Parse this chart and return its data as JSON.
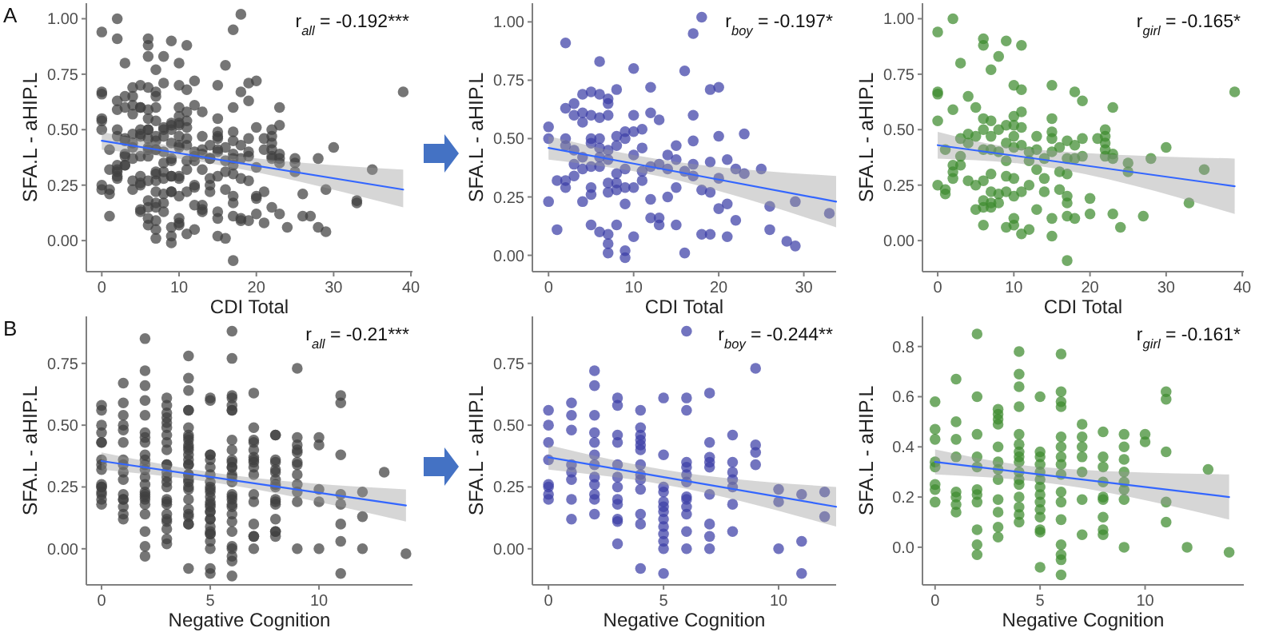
{
  "chart_data": [
    {
      "type": "scatter",
      "xlabel": "CDI Total",
      "ylabel": "SFA.L - aHIP.L",
      "marker": "circle",
      "annotations": [
        "r$_{all}$ = -0.192***",
        "A"
      ],
      "xlim": [
        -2,
        40.2
      ],
      "ylim": [
        -0.14,
        1.07
      ],
      "xticks": [
        0,
        10,
        20,
        30,
        40
      ],
      "yticks": [
        {
          "value": 0,
          "label": "0.00"
        },
        {
          "value": 0.25,
          "label": "0.25"
        },
        {
          "value": 0.5,
          "label": "0.50"
        },
        {
          "value": 0.75,
          "label": "0.75"
        },
        {
          "value": 1,
          "label": "1.00"
        }
      ],
      "series": [
        {
          "color": "#404040",
          "x": [
            0,
            0,
            0,
            1,
            1,
            2,
            2,
            2,
            2,
            2,
            2,
            3,
            3,
            3,
            3,
            3,
            4,
            4,
            4,
            4,
            4,
            4,
            5,
            5,
            5,
            5,
            5,
            5,
            5,
            5,
            6,
            6,
            6,
            6,
            6,
            6,
            6,
            6,
            7,
            7,
            7,
            7,
            7,
            7,
            7,
            7,
            7,
            7,
            8,
            8,
            8,
            8,
            8,
            8,
            8,
            9,
            9,
            9,
            9,
            9,
            9,
            9,
            10,
            10,
            10,
            10,
            10,
            10,
            11,
            11,
            11,
            11,
            12,
            12,
            12,
            12,
            12,
            13,
            13,
            13,
            13,
            14,
            14,
            14,
            15,
            15,
            15,
            15,
            16,
            16,
            16,
            17,
            17,
            17,
            17,
            17,
            18,
            18,
            18,
            19,
            19,
            19,
            19,
            20,
            20,
            20,
            20,
            21,
            21,
            21,
            22,
            22,
            23,
            23,
            25,
            26,
            26,
            28,
            29,
            29,
            33,
            0,
            0,
            0,
            0,
            0,
            1,
            1,
            1,
            2,
            2,
            2,
            2,
            2,
            3,
            3,
            3,
            3,
            4,
            4,
            4,
            4,
            5,
            5,
            5,
            5,
            6,
            6,
            6,
            6,
            6,
            6,
            6,
            6,
            6,
            7,
            7,
            7,
            7,
            7,
            7,
            7,
            7,
            8,
            8,
            8,
            8,
            8,
            9,
            9,
            9,
            9,
            9,
            9,
            9,
            10,
            10,
            10,
            10,
            10,
            10,
            10,
            10,
            10,
            11,
            11,
            11,
            11,
            11,
            11,
            11,
            12,
            12,
            12,
            12,
            13,
            13,
            13,
            13,
            14,
            14,
            14,
            15,
            15,
            15,
            15,
            15,
            15,
            15,
            16,
            16,
            16,
            17,
            17,
            17,
            17,
            17,
            17,
            17,
            18,
            18,
            18,
            18,
            19,
            19,
            19,
            20,
            20,
            21,
            22,
            22,
            22,
            22,
            22,
            23,
            23,
            23,
            23,
            24,
            25,
            25,
            27,
            28,
            30,
            33,
            35,
            39
          ],
          "values": [
            0.55,
            0.5,
            0.23,
            0.11,
            0.32,
            0.91,
            0.63,
            0.5,
            0.47,
            0.32,
            0.29,
            0.65,
            0.6,
            0.45,
            0.39,
            0.34,
            0.69,
            0.61,
            0.57,
            0.42,
            0.37,
            0.23,
            0.7,
            0.6,
            0.5,
            0.48,
            0.38,
            0.29,
            0.26,
            0.13,
            0.83,
            0.69,
            0.59,
            0.5,
            0.46,
            0.42,
            0.38,
            0.1,
            0.67,
            0.65,
            0.6,
            0.45,
            0.41,
            0.31,
            0.27,
            0.09,
            0.05,
            0.01,
            0.71,
            0.51,
            0.47,
            0.35,
            0.31,
            0.28,
            0.13,
            0.53,
            0.5,
            0.37,
            0.29,
            0.22,
            0.02,
            -0.01,
            0.8,
            0.6,
            0.53,
            0.43,
            0.29,
            0.08,
            0.54,
            0.46,
            0.36,
            0.32,
            0.72,
            0.61,
            0.38,
            0.24,
            0.16,
            0.58,
            0.39,
            0.16,
            0.13,
            0.43,
            0.37,
            0.25,
            0.47,
            0.41,
            0.29,
            0.13,
            0.79,
            0.36,
            0.01,
            0.95,
            0.6,
            0.49,
            0.39,
            0.34,
            1.02,
            0.28,
            0.09,
            0.71,
            0.4,
            0.27,
            0.09,
            0.72,
            0.51,
            0.33,
            0.2,
            0.41,
            0.22,
            0.08,
            0.37,
            0.15,
            0.52,
            0.35,
            0.37,
            0.21,
            0.11,
            0.06,
            0.23,
            0.04,
            0.18,
            0.94,
            0.67,
            0.66,
            0.54,
            0.25,
            0.41,
            0.23,
            0.21,
            1.0,
            0.59,
            0.34,
            0.31,
            0.28,
            0.8,
            0.46,
            0.38,
            0.34,
            0.65,
            0.48,
            0.44,
            0.27,
            0.6,
            0.47,
            0.25,
            0.14,
            0.91,
            0.88,
            0.55,
            0.5,
            0.41,
            0.27,
            0.18,
            0.15,
            0.07,
            0.77,
            0.54,
            0.47,
            0.41,
            0.3,
            0.22,
            0.17,
            0.15,
            0.83,
            0.5,
            0.4,
            0.21,
            0.17,
            0.9,
            0.52,
            0.44,
            0.36,
            0.29,
            0.22,
            0.06,
            0.7,
            0.56,
            0.52,
            0.47,
            0.42,
            0.28,
            0.2,
            0.1,
            0.07,
            0.88,
            0.68,
            0.58,
            0.51,
            0.43,
            0.22,
            0.03,
            0.4,
            0.36,
            0.25,
            0.05,
            0.47,
            0.41,
            0.32,
            0.14,
            0.37,
            0.28,
            0.22,
            0.7,
            0.55,
            0.49,
            0.46,
            0.4,
            0.1,
            0.02,
            0.42,
            0.31,
            0.23,
            0.45,
            0.37,
            0.3,
            0.2,
            0.17,
            0.11,
            -0.09,
            0.67,
            0.43,
            0.37,
            0.1,
            0.63,
            0.46,
            0.38,
            0.19,
            0.12,
            0.46,
            0.5,
            0.47,
            0.44,
            0.41,
            0.38,
            0.6,
            0.39,
            0.37,
            0.12,
            0.06,
            0.35,
            0.31,
            0.11,
            0.37,
            0.42,
            0.17,
            0.32,
            0.67
          ]
        },
        {
          "type": "line",
          "marker": "none",
          "color": "#3366ff",
          "x": [
            0,
            10,
            39
          ],
          "values": [
            0.45,
            0.394,
            0.23
          ],
          "lower": [
            0.41,
            0.37,
            0.15
          ],
          "upper": [
            0.49,
            0.42,
            0.32
          ]
        }
      ]
    },
    {
      "type": "scatter",
      "xlabel": "CDI Total",
      "ylabel": "SFA.L - aHIP.L",
      "marker": "circle",
      "annotations": [
        "r$_{boy}$ = -0.197*"
      ],
      "xlim": [
        -1.9,
        33.8
      ],
      "ylim": [
        -0.07,
        1.08
      ],
      "xticks": [
        0,
        10,
        20,
        30
      ],
      "yticks": [
        {
          "value": 0,
          "label": "0.00"
        },
        {
          "value": 0.25,
          "label": "0.25"
        },
        {
          "value": 0.5,
          "label": "0.50"
        },
        {
          "value": 0.75,
          "label": "0.75"
        },
        {
          "value": 1,
          "label": "1.00"
        }
      ],
      "series": [
        {
          "color": "#3b3fa6",
          "x": [
            0,
            0,
            0,
            1,
            1,
            2,
            2,
            2,
            2,
            2,
            2,
            3,
            3,
            3,
            3,
            3,
            4,
            4,
            4,
            4,
            4,
            4,
            5,
            5,
            5,
            5,
            5,
            5,
            5,
            5,
            6,
            6,
            6,
            6,
            6,
            6,
            6,
            6,
            7,
            7,
            7,
            7,
            7,
            7,
            7,
            7,
            7,
            7,
            8,
            8,
            8,
            8,
            8,
            8,
            8,
            9,
            9,
            9,
            9,
            9,
            9,
            9,
            10,
            10,
            10,
            10,
            10,
            10,
            11,
            11,
            11,
            11,
            12,
            12,
            12,
            12,
            12,
            13,
            13,
            13,
            13,
            14,
            14,
            14,
            15,
            15,
            15,
            15,
            16,
            16,
            16,
            17,
            17,
            17,
            17,
            17,
            18,
            18,
            18,
            19,
            19,
            19,
            19,
            20,
            20,
            20,
            20,
            21,
            21,
            21,
            22,
            22,
            23,
            23,
            25,
            26,
            26,
            28,
            29,
            29,
            33
          ],
          "values": [
            0.55,
            0.5,
            0.23,
            0.11,
            0.32,
            0.91,
            0.63,
            0.5,
            0.47,
            0.32,
            0.29,
            0.65,
            0.6,
            0.45,
            0.39,
            0.34,
            0.69,
            0.61,
            0.57,
            0.42,
            0.37,
            0.23,
            0.7,
            0.6,
            0.5,
            0.48,
            0.38,
            0.29,
            0.26,
            0.13,
            0.83,
            0.69,
            0.59,
            0.5,
            0.46,
            0.42,
            0.38,
            0.1,
            0.67,
            0.65,
            0.6,
            0.45,
            0.41,
            0.31,
            0.27,
            0.09,
            0.05,
            0.01,
            0.71,
            0.51,
            0.47,
            0.35,
            0.31,
            0.28,
            0.13,
            0.53,
            0.5,
            0.37,
            0.29,
            0.22,
            0.02,
            -0.01,
            0.8,
            0.6,
            0.53,
            0.43,
            0.29,
            0.08,
            0.54,
            0.46,
            0.36,
            0.32,
            0.72,
            0.61,
            0.38,
            0.24,
            0.16,
            0.58,
            0.39,
            0.16,
            0.13,
            0.43,
            0.37,
            0.25,
            0.47,
            0.41,
            0.29,
            0.13,
            0.79,
            0.36,
            0.01,
            0.95,
            0.6,
            0.49,
            0.39,
            0.34,
            1.02,
            0.28,
            0.09,
            0.71,
            0.4,
            0.27,
            0.09,
            0.72,
            0.51,
            0.33,
            0.2,
            0.41,
            0.22,
            0.08,
            0.37,
            0.15,
            0.52,
            0.35,
            0.37,
            0.21,
            0.11,
            0.06,
            0.23,
            0.04,
            0.18
          ]
        },
        {
          "type": "line",
          "marker": "none",
          "color": "#3366ff",
          "x": [
            0,
            10,
            33.8
          ],
          "values": [
            0.46,
            0.393,
            0.23
          ],
          "lower": [
            0.41,
            0.36,
            0.12
          ],
          "upper": [
            0.51,
            0.43,
            0.34
          ]
        }
      ]
    },
    {
      "type": "scatter",
      "xlabel": "CDI Total",
      "ylabel": "SFA.L - aHIP.L",
      "marker": "circle",
      "annotations": [
        "r$_{girl}$ = -0.165*"
      ],
      "xlim": [
        -2,
        40.2
      ],
      "ylim": [
        -0.14,
        1.07
      ],
      "xticks": [
        0,
        10,
        20,
        30,
        40
      ],
      "yticks": [
        {
          "value": 0,
          "label": "0.00"
        },
        {
          "value": 0.25,
          "label": "0.25"
        },
        {
          "value": 0.5,
          "label": "0.50"
        },
        {
          "value": 0.75,
          "label": "0.75"
        },
        {
          "value": 1,
          "label": "1.00"
        }
      ],
      "series": [
        {
          "color": "#3d8a2e",
          "x": [
            0,
            0,
            0,
            0,
            0,
            1,
            1,
            1,
            2,
            2,
            2,
            2,
            2,
            3,
            3,
            3,
            3,
            4,
            4,
            4,
            4,
            5,
            5,
            5,
            5,
            6,
            6,
            6,
            6,
            6,
            6,
            6,
            6,
            6,
            7,
            7,
            7,
            7,
            7,
            7,
            7,
            7,
            8,
            8,
            8,
            8,
            8,
            9,
            9,
            9,
            9,
            9,
            9,
            9,
            10,
            10,
            10,
            10,
            10,
            10,
            10,
            10,
            10,
            11,
            11,
            11,
            11,
            11,
            11,
            11,
            12,
            12,
            12,
            12,
            13,
            13,
            13,
            13,
            14,
            14,
            14,
            15,
            15,
            15,
            15,
            15,
            15,
            15,
            16,
            16,
            16,
            17,
            17,
            17,
            17,
            17,
            17,
            17,
            18,
            18,
            18,
            18,
            19,
            19,
            19,
            20,
            20,
            21,
            22,
            22,
            22,
            22,
            22,
            23,
            23,
            23,
            23,
            24,
            25,
            25,
            27,
            28,
            30,
            33,
            35,
            39
          ],
          "values": [
            0.94,
            0.67,
            0.66,
            0.54,
            0.25,
            0.41,
            0.23,
            0.21,
            1.0,
            0.59,
            0.34,
            0.31,
            0.28,
            0.8,
            0.46,
            0.38,
            0.34,
            0.65,
            0.48,
            0.44,
            0.27,
            0.6,
            0.47,
            0.25,
            0.14,
            0.91,
            0.88,
            0.55,
            0.5,
            0.41,
            0.27,
            0.18,
            0.15,
            0.07,
            0.77,
            0.54,
            0.47,
            0.41,
            0.3,
            0.22,
            0.17,
            0.15,
            0.83,
            0.5,
            0.4,
            0.21,
            0.17,
            0.9,
            0.52,
            0.44,
            0.36,
            0.29,
            0.22,
            0.06,
            0.7,
            0.56,
            0.52,
            0.47,
            0.42,
            0.28,
            0.2,
            0.1,
            0.07,
            0.88,
            0.68,
            0.58,
            0.51,
            0.43,
            0.22,
            0.03,
            0.4,
            0.36,
            0.25,
            0.05,
            0.47,
            0.41,
            0.32,
            0.14,
            0.37,
            0.28,
            0.22,
            0.7,
            0.55,
            0.49,
            0.46,
            0.4,
            0.1,
            0.02,
            0.42,
            0.31,
            0.23,
            0.45,
            0.37,
            0.3,
            0.2,
            0.17,
            0.11,
            -0.09,
            0.67,
            0.43,
            0.37,
            0.1,
            0.63,
            0.46,
            0.38,
            0.19,
            0.12,
            0.46,
            0.5,
            0.47,
            0.44,
            0.41,
            0.38,
            0.6,
            0.39,
            0.37,
            0.12,
            0.06,
            0.35,
            0.31,
            0.11,
            0.37,
            0.42,
            0.17,
            0.32,
            0.67
          ]
        },
        {
          "type": "line",
          "marker": "none",
          "color": "#3366ff",
          "x": [
            0,
            10,
            39
          ],
          "values": [
            0.43,
            0.383,
            0.245
          ],
          "lower": [
            0.37,
            0.35,
            0.12
          ],
          "upper": [
            0.49,
            0.42,
            0.37
          ]
        }
      ]
    },
    {
      "type": "scatter",
      "xlabel": "Negative Cognition",
      "ylabel": "SFA.L - aHIP.L",
      "marker": "circle",
      "annotations": [
        "r$_{all}$ = -0.21***",
        "B"
      ],
      "xlim": [
        -0.7,
        14.3
      ],
      "ylim": [
        -0.146,
        0.94
      ],
      "xticks": [
        0,
        5,
        10
      ],
      "yticks": [
        {
          "value": 0,
          "label": "0.00"
        },
        {
          "value": 0.25,
          "label": "0.25"
        },
        {
          "value": 0.5,
          "label": "0.50"
        },
        {
          "value": 0.75,
          "label": "0.75"
        }
      ],
      "series": [
        {
          "color": "#404040",
          "x": [
            0,
            0,
            0,
            0,
            0,
            0,
            0,
            0,
            1,
            1,
            1,
            1,
            1,
            1,
            1,
            1,
            2,
            2,
            2,
            2,
            2,
            2,
            2,
            2,
            2,
            2,
            2,
            2,
            3,
            3,
            3,
            3,
            3,
            3,
            3,
            3,
            3,
            3,
            3,
            3,
            4,
            4,
            4,
            4,
            4,
            4,
            4,
            4,
            4,
            4,
            4,
            4,
            4,
            5,
            5,
            5,
            5,
            5,
            5,
            5,
            5,
            5,
            5,
            5,
            5,
            5,
            6,
            6,
            6,
            6,
            6,
            6,
            6,
            6,
            6,
            6,
            6,
            6,
            6,
            7,
            7,
            7,
            7,
            7,
            7,
            7,
            7,
            7,
            8,
            8,
            8,
            8,
            8,
            8,
            8,
            9,
            9,
            9,
            9,
            10,
            10,
            10,
            11,
            11,
            11,
            12,
            12,
            0,
            0,
            0,
            0,
            0,
            0,
            0,
            0,
            1,
            1,
            1,
            1,
            1,
            1,
            1,
            1,
            2,
            2,
            2,
            2,
            2,
            2,
            2,
            2,
            2,
            2,
            2,
            3,
            3,
            3,
            3,
            3,
            3,
            3,
            3,
            3,
            3,
            3,
            3,
            4,
            4,
            4,
            4,
            4,
            4,
            4,
            4,
            4,
            4,
            4,
            4,
            4,
            4,
            4,
            4,
            5,
            5,
            5,
            5,
            5,
            5,
            5,
            5,
            5,
            5,
            5,
            5,
            5,
            5,
            6,
            6,
            6,
            6,
            6,
            6,
            6,
            6,
            6,
            6,
            6,
            6,
            6,
            6,
            6,
            6,
            7,
            7,
            7,
            7,
            7,
            7,
            7,
            8,
            8,
            8,
            8,
            8,
            8,
            8,
            8,
            8,
            9,
            9,
            9,
            9,
            9,
            9,
            9,
            9,
            10,
            10,
            11,
            11,
            11,
            11,
            11,
            12,
            13,
            14
          ],
          "values": [
            0.56,
            0.5,
            0.43,
            0.36,
            0.26,
            0.25,
            0.22,
            0.2,
            0.59,
            0.54,
            0.48,
            0.34,
            0.31,
            0.28,
            0.2,
            0.12,
            0.72,
            0.66,
            0.54,
            0.47,
            0.43,
            0.38,
            0.34,
            0.29,
            0.26,
            0.22,
            0.2,
            0.14,
            0.61,
            0.58,
            0.46,
            0.43,
            0.34,
            0.29,
            0.25,
            0.2,
            0.18,
            0.12,
            0.11,
            0.02,
            0.56,
            0.49,
            0.46,
            0.44,
            0.42,
            0.4,
            0.34,
            0.3,
            0.28,
            0.24,
            0.14,
            0.1,
            -0.08,
            0.61,
            0.38,
            0.25,
            0.23,
            0.19,
            0.17,
            0.15,
            0.12,
            0.09,
            0.06,
            0.03,
            0.0,
            -0.1,
            0.88,
            0.61,
            0.56,
            0.35,
            0.33,
            0.3,
            0.27,
            0.21,
            0.2,
            0.17,
            0.14,
            0.07,
            0.0,
            0.63,
            0.43,
            0.37,
            0.35,
            0.33,
            0.22,
            0.1,
            0.05,
            0.0,
            0.46,
            0.35,
            0.31,
            0.28,
            0.25,
            0.18,
            0.07,
            0.73,
            0.42,
            0.39,
            0.34,
            0.24,
            0.19,
            0.0,
            0.22,
            0.03,
            -0.1,
            0.23,
            0.13,
            0.58,
            0.47,
            0.43,
            0.34,
            0.32,
            0.25,
            0.23,
            0.18,
            0.67,
            0.5,
            0.43,
            0.36,
            0.22,
            0.2,
            0.17,
            0.14,
            0.85,
            0.6,
            0.45,
            0.36,
            0.32,
            0.23,
            0.21,
            0.18,
            0.07,
            0.01,
            -0.03,
            0.55,
            0.53,
            0.51,
            0.49,
            0.4,
            0.34,
            0.31,
            0.27,
            0.19,
            0.14,
            0.08,
            0.04,
            0.78,
            0.69,
            0.64,
            0.56,
            0.45,
            0.41,
            0.38,
            0.36,
            0.34,
            0.3,
            0.27,
            0.25,
            0.2,
            0.16,
            0.13,
            0.1,
            0.6,
            0.38,
            0.36,
            0.33,
            0.3,
            0.27,
            0.24,
            0.21,
            0.18,
            0.15,
            0.12,
            0.07,
            0.06,
            -0.08,
            0.77,
            0.62,
            0.58,
            0.56,
            0.44,
            0.4,
            0.36,
            0.33,
            0.29,
            0.22,
            0.18,
            0.11,
            0.01,
            -0.03,
            -0.05,
            -0.11,
            0.49,
            0.44,
            0.4,
            0.36,
            0.3,
            0.19,
            0.05,
            0.46,
            0.36,
            0.32,
            0.26,
            0.2,
            0.19,
            0.12,
            0.07,
            0.05,
            0.45,
            0.4,
            0.35,
            0.3,
            0.26,
            0.23,
            0.19,
            0.0,
            0.45,
            0.42,
            0.62,
            0.59,
            0.38,
            0.18,
            0.1,
            0.0,
            0.31,
            -0.02
          ]
        },
        {
          "type": "line",
          "marker": "none",
          "color": "#3366ff",
          "x": [
            0,
            5,
            14
          ],
          "values": [
            0.355,
            0.291,
            0.175
          ],
          "lower": [
            0.32,
            0.27,
            0.11
          ],
          "upper": [
            0.39,
            0.31,
            0.24
          ]
        }
      ]
    },
    {
      "type": "scatter",
      "xlabel": "Negative Cognition",
      "ylabel": "SFA.L - aHIP.L",
      "marker": "circle",
      "annotations": [
        "r$_{boy}$ = -0.244**"
      ],
      "xlim": [
        -0.7,
        12.5
      ],
      "ylim": [
        -0.146,
        0.94
      ],
      "xticks": [
        0,
        5,
        10
      ],
      "yticks": [
        {
          "value": 0,
          "label": "0.00"
        },
        {
          "value": 0.25,
          "label": "0.25"
        },
        {
          "value": 0.5,
          "label": "0.50"
        },
        {
          "value": 0.75,
          "label": "0.75"
        }
      ],
      "series": [
        {
          "color": "#3b3fa6",
          "x": [
            0,
            0,
            0,
            0,
            0,
            0,
            0,
            0,
            1,
            1,
            1,
            1,
            1,
            1,
            1,
            1,
            2,
            2,
            2,
            2,
            2,
            2,
            2,
            2,
            2,
            2,
            2,
            2,
            3,
            3,
            3,
            3,
            3,
            3,
            3,
            3,
            3,
            3,
            3,
            3,
            4,
            4,
            4,
            4,
            4,
            4,
            4,
            4,
            4,
            4,
            4,
            4,
            4,
            5,
            5,
            5,
            5,
            5,
            5,
            5,
            5,
            5,
            5,
            5,
            5,
            5,
            6,
            6,
            6,
            6,
            6,
            6,
            6,
            6,
            6,
            6,
            6,
            6,
            6,
            7,
            7,
            7,
            7,
            7,
            7,
            7,
            7,
            7,
            8,
            8,
            8,
            8,
            8,
            8,
            8,
            9,
            9,
            9,
            9,
            10,
            10,
            10,
            11,
            11,
            11,
            12,
            12
          ],
          "values": [
            0.56,
            0.5,
            0.43,
            0.36,
            0.26,
            0.25,
            0.22,
            0.2,
            0.59,
            0.54,
            0.48,
            0.34,
            0.31,
            0.28,
            0.2,
            0.12,
            0.72,
            0.66,
            0.54,
            0.47,
            0.43,
            0.38,
            0.34,
            0.29,
            0.26,
            0.22,
            0.2,
            0.14,
            0.61,
            0.58,
            0.46,
            0.43,
            0.34,
            0.29,
            0.25,
            0.2,
            0.18,
            0.12,
            0.11,
            0.02,
            0.56,
            0.49,
            0.46,
            0.44,
            0.42,
            0.4,
            0.34,
            0.3,
            0.28,
            0.24,
            0.14,
            0.1,
            -0.08,
            0.61,
            0.38,
            0.25,
            0.23,
            0.19,
            0.17,
            0.15,
            0.12,
            0.09,
            0.06,
            0.03,
            0.0,
            -0.1,
            0.88,
            0.61,
            0.56,
            0.35,
            0.33,
            0.3,
            0.27,
            0.21,
            0.2,
            0.17,
            0.14,
            0.07,
            0.0,
            0.63,
            0.43,
            0.37,
            0.35,
            0.33,
            0.22,
            0.1,
            0.05,
            0.0,
            0.46,
            0.35,
            0.31,
            0.28,
            0.25,
            0.18,
            0.07,
            0.73,
            0.42,
            0.39,
            0.34,
            0.24,
            0.19,
            0.0,
            0.22,
            0.03,
            -0.1,
            0.23,
            0.13
          ]
        },
        {
          "type": "line",
          "marker": "none",
          "color": "#3366ff",
          "x": [
            0,
            5,
            12.5
          ],
          "values": [
            0.37,
            0.29,
            0.17
          ],
          "lower": [
            0.32,
            0.26,
            0.09
          ],
          "upper": [
            0.42,
            0.32,
            0.25
          ]
        }
      ]
    },
    {
      "type": "scatter",
      "xlabel": "Negative Cognition",
      "ylabel": "SFA.L - aHIP.L",
      "marker": "circle",
      "annotations": [
        "r$_{girl}$ = -0.161*"
      ],
      "xlim": [
        -0.6,
        14.7
      ],
      "ylim": [
        -0.15,
        0.92
      ],
      "xticks": [
        0,
        5,
        10
      ],
      "yticks": [
        {
          "value": 0,
          "label": "0.0"
        },
        {
          "value": 0.2,
          "label": "0.2"
        },
        {
          "value": 0.4,
          "label": "0.4"
        },
        {
          "value": 0.6,
          "label": "0.6"
        },
        {
          "value": 0.8,
          "label": "0.8"
        }
      ],
      "series": [
        {
          "color": "#3d8a2e",
          "x": [
            0,
            0,
            0,
            0,
            0,
            0,
            0,
            0,
            1,
            1,
            1,
            1,
            1,
            1,
            1,
            1,
            2,
            2,
            2,
            2,
            2,
            2,
            2,
            2,
            2,
            2,
            2,
            3,
            3,
            3,
            3,
            3,
            3,
            3,
            3,
            3,
            3,
            3,
            3,
            4,
            4,
            4,
            4,
            4,
            4,
            4,
            4,
            4,
            4,
            4,
            4,
            4,
            4,
            4,
            4,
            5,
            5,
            5,
            5,
            5,
            5,
            5,
            5,
            5,
            5,
            5,
            5,
            5,
            5,
            6,
            6,
            6,
            6,
            6,
            6,
            6,
            6,
            6,
            6,
            6,
            6,
            6,
            6,
            6,
            6,
            7,
            7,
            7,
            7,
            7,
            7,
            7,
            8,
            8,
            8,
            8,
            8,
            8,
            8,
            8,
            8,
            9,
            9,
            9,
            9,
            9,
            9,
            9,
            9,
            10,
            10,
            11,
            11,
            11,
            11,
            11,
            12,
            13,
            14
          ],
          "values": [
            0.58,
            0.47,
            0.43,
            0.34,
            0.32,
            0.25,
            0.23,
            0.18,
            0.67,
            0.5,
            0.43,
            0.36,
            0.22,
            0.2,
            0.17,
            0.14,
            0.85,
            0.6,
            0.45,
            0.36,
            0.32,
            0.23,
            0.21,
            0.18,
            0.07,
            0.01,
            -0.03,
            0.55,
            0.53,
            0.51,
            0.49,
            0.4,
            0.34,
            0.31,
            0.27,
            0.19,
            0.14,
            0.08,
            0.04,
            0.78,
            0.69,
            0.64,
            0.56,
            0.45,
            0.41,
            0.38,
            0.36,
            0.34,
            0.3,
            0.27,
            0.25,
            0.2,
            0.16,
            0.13,
            0.1,
            0.6,
            0.38,
            0.36,
            0.33,
            0.3,
            0.27,
            0.24,
            0.21,
            0.18,
            0.15,
            0.12,
            0.07,
            0.06,
            -0.08,
            0.77,
            0.62,
            0.58,
            0.56,
            0.44,
            0.4,
            0.36,
            0.33,
            0.29,
            0.22,
            0.18,
            0.11,
            0.01,
            -0.03,
            -0.05,
            -0.11,
            0.49,
            0.44,
            0.4,
            0.36,
            0.3,
            0.19,
            0.05,
            0.46,
            0.36,
            0.32,
            0.26,
            0.2,
            0.19,
            0.12,
            0.07,
            0.05,
            0.45,
            0.4,
            0.35,
            0.3,
            0.26,
            0.23,
            0.19,
            0.0,
            0.45,
            0.42,
            0.62,
            0.59,
            0.38,
            0.18,
            0.1,
            0.0,
            0.31,
            -0.02
          ]
        },
        {
          "type": "line",
          "marker": "none",
          "color": "#3366ff",
          "x": [
            0,
            5,
            14
          ],
          "values": [
            0.34,
            0.29,
            0.2
          ],
          "lower": [
            0.29,
            0.26,
            0.11
          ],
          "upper": [
            0.39,
            0.32,
            0.29
          ]
        }
      ]
    }
  ]
}
